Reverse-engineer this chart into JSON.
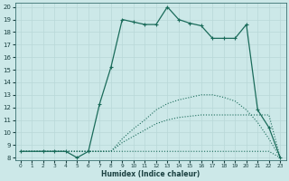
{
  "xlabel": "Humidex (Indice chaleur)",
  "bg_color": "#cce8e8",
  "grid_color": "#b8d8d8",
  "line_color": "#1a6b5a",
  "xlim": [
    -0.5,
    23.5
  ],
  "ylim": [
    7.8,
    20.3
  ],
  "yticks": [
    8,
    9,
    10,
    11,
    12,
    13,
    14,
    15,
    16,
    17,
    18,
    19,
    20
  ],
  "xticks": [
    0,
    1,
    2,
    3,
    4,
    5,
    6,
    7,
    8,
    9,
    10,
    11,
    12,
    13,
    14,
    15,
    16,
    17,
    18,
    19,
    20,
    21,
    22,
    23
  ],
  "line1": {
    "x": [
      0,
      1,
      2,
      3,
      4,
      5,
      6,
      7,
      8,
      9,
      10,
      11,
      12,
      13,
      14,
      15,
      16,
      17,
      18,
      19,
      20,
      21,
      22,
      23
    ],
    "y": [
      8.5,
      8.5,
      8.5,
      8.5,
      8.5,
      8.5,
      8.5,
      8.5,
      8.5,
      8.5,
      8.5,
      8.5,
      8.5,
      8.5,
      8.5,
      8.5,
      8.5,
      8.5,
      8.5,
      8.5,
      8.5,
      8.5,
      8.5,
      8.0
    ]
  },
  "line2": {
    "x": [
      0,
      1,
      2,
      3,
      4,
      5,
      6,
      7,
      8,
      9,
      10,
      11,
      12,
      13,
      14,
      15,
      16,
      17,
      18,
      19,
      20,
      21,
      22,
      23
    ],
    "y": [
      8.5,
      8.5,
      8.5,
      8.5,
      8.5,
      8.5,
      8.5,
      8.5,
      8.5,
      9.2,
      9.7,
      10.2,
      10.7,
      11.0,
      11.2,
      11.3,
      11.4,
      11.4,
      11.4,
      11.4,
      11.4,
      11.4,
      11.4,
      8.0
    ]
  },
  "line3": {
    "x": [
      0,
      1,
      2,
      3,
      4,
      5,
      6,
      7,
      8,
      9,
      10,
      11,
      12,
      13,
      14,
      15,
      16,
      17,
      18,
      19,
      20,
      21,
      22,
      23
    ],
    "y": [
      8.5,
      8.5,
      8.5,
      8.5,
      8.5,
      8.5,
      8.5,
      8.5,
      8.5,
      9.5,
      10.3,
      11.0,
      11.8,
      12.3,
      12.6,
      12.8,
      13.0,
      13.0,
      12.8,
      12.5,
      11.8,
      10.8,
      9.5,
      8.0
    ]
  },
  "line4": {
    "x": [
      0,
      2,
      3,
      4,
      5,
      6,
      7,
      8,
      9,
      10,
      11,
      12,
      13,
      14,
      15,
      16,
      17,
      18,
      19,
      20,
      21,
      22,
      23
    ],
    "y": [
      8.5,
      8.5,
      8.5,
      8.5,
      8.0,
      8.5,
      12.3,
      15.2,
      19.0,
      18.8,
      18.6,
      18.6,
      20.0,
      19.0,
      18.7,
      18.5,
      17.5,
      17.5,
      17.5,
      18.6,
      11.8,
      10.4,
      8.0
    ]
  }
}
